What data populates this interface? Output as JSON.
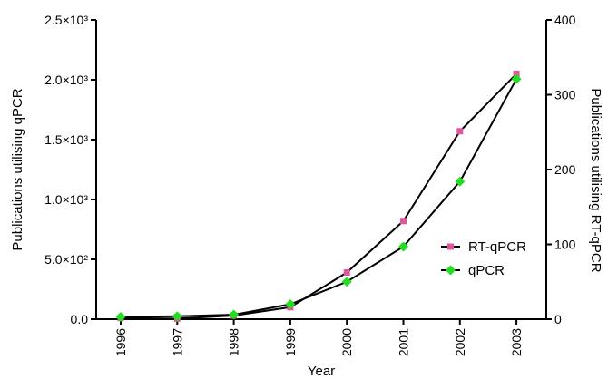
{
  "chart_data": {
    "type": "line",
    "xlabel": "Year",
    "ylabel_left": "Publications utilising qPCR",
    "ylabel_right": "Publications utilising RT-qPCR",
    "categories": [
      "1996",
      "1997",
      "1998",
      "1999",
      "2000",
      "2001",
      "2002",
      "2003"
    ],
    "left_axis": {
      "ylim": [
        0,
        2500
      ],
      "ticks": [
        0,
        500,
        1000,
        1500,
        2000,
        2500
      ],
      "tick_labels": [
        "0.0",
        "5.0×10²",
        "1.0×10³",
        "1.5×10³",
        "2.0×10³",
        "2.5×10³"
      ]
    },
    "right_axis": {
      "ylim": [
        0,
        400
      ],
      "ticks": [
        0,
        100,
        200,
        300,
        400
      ],
      "tick_labels": [
        "0",
        "100",
        "200",
        "300",
        "400"
      ]
    },
    "series": [
      {
        "name": "RT-qPCR",
        "axis": "left",
        "color": "#e0559b",
        "marker": "square",
        "values": [
          10,
          5,
          30,
          100,
          390,
          820,
          1570,
          2050
        ]
      },
      {
        "name": "qPCR",
        "axis": "right",
        "color": "#22dd22",
        "marker": "diamond",
        "values": [
          3,
          4,
          6,
          20,
          50,
          97,
          184,
          321
        ]
      }
    ],
    "legend": "right",
    "grid": false
  }
}
